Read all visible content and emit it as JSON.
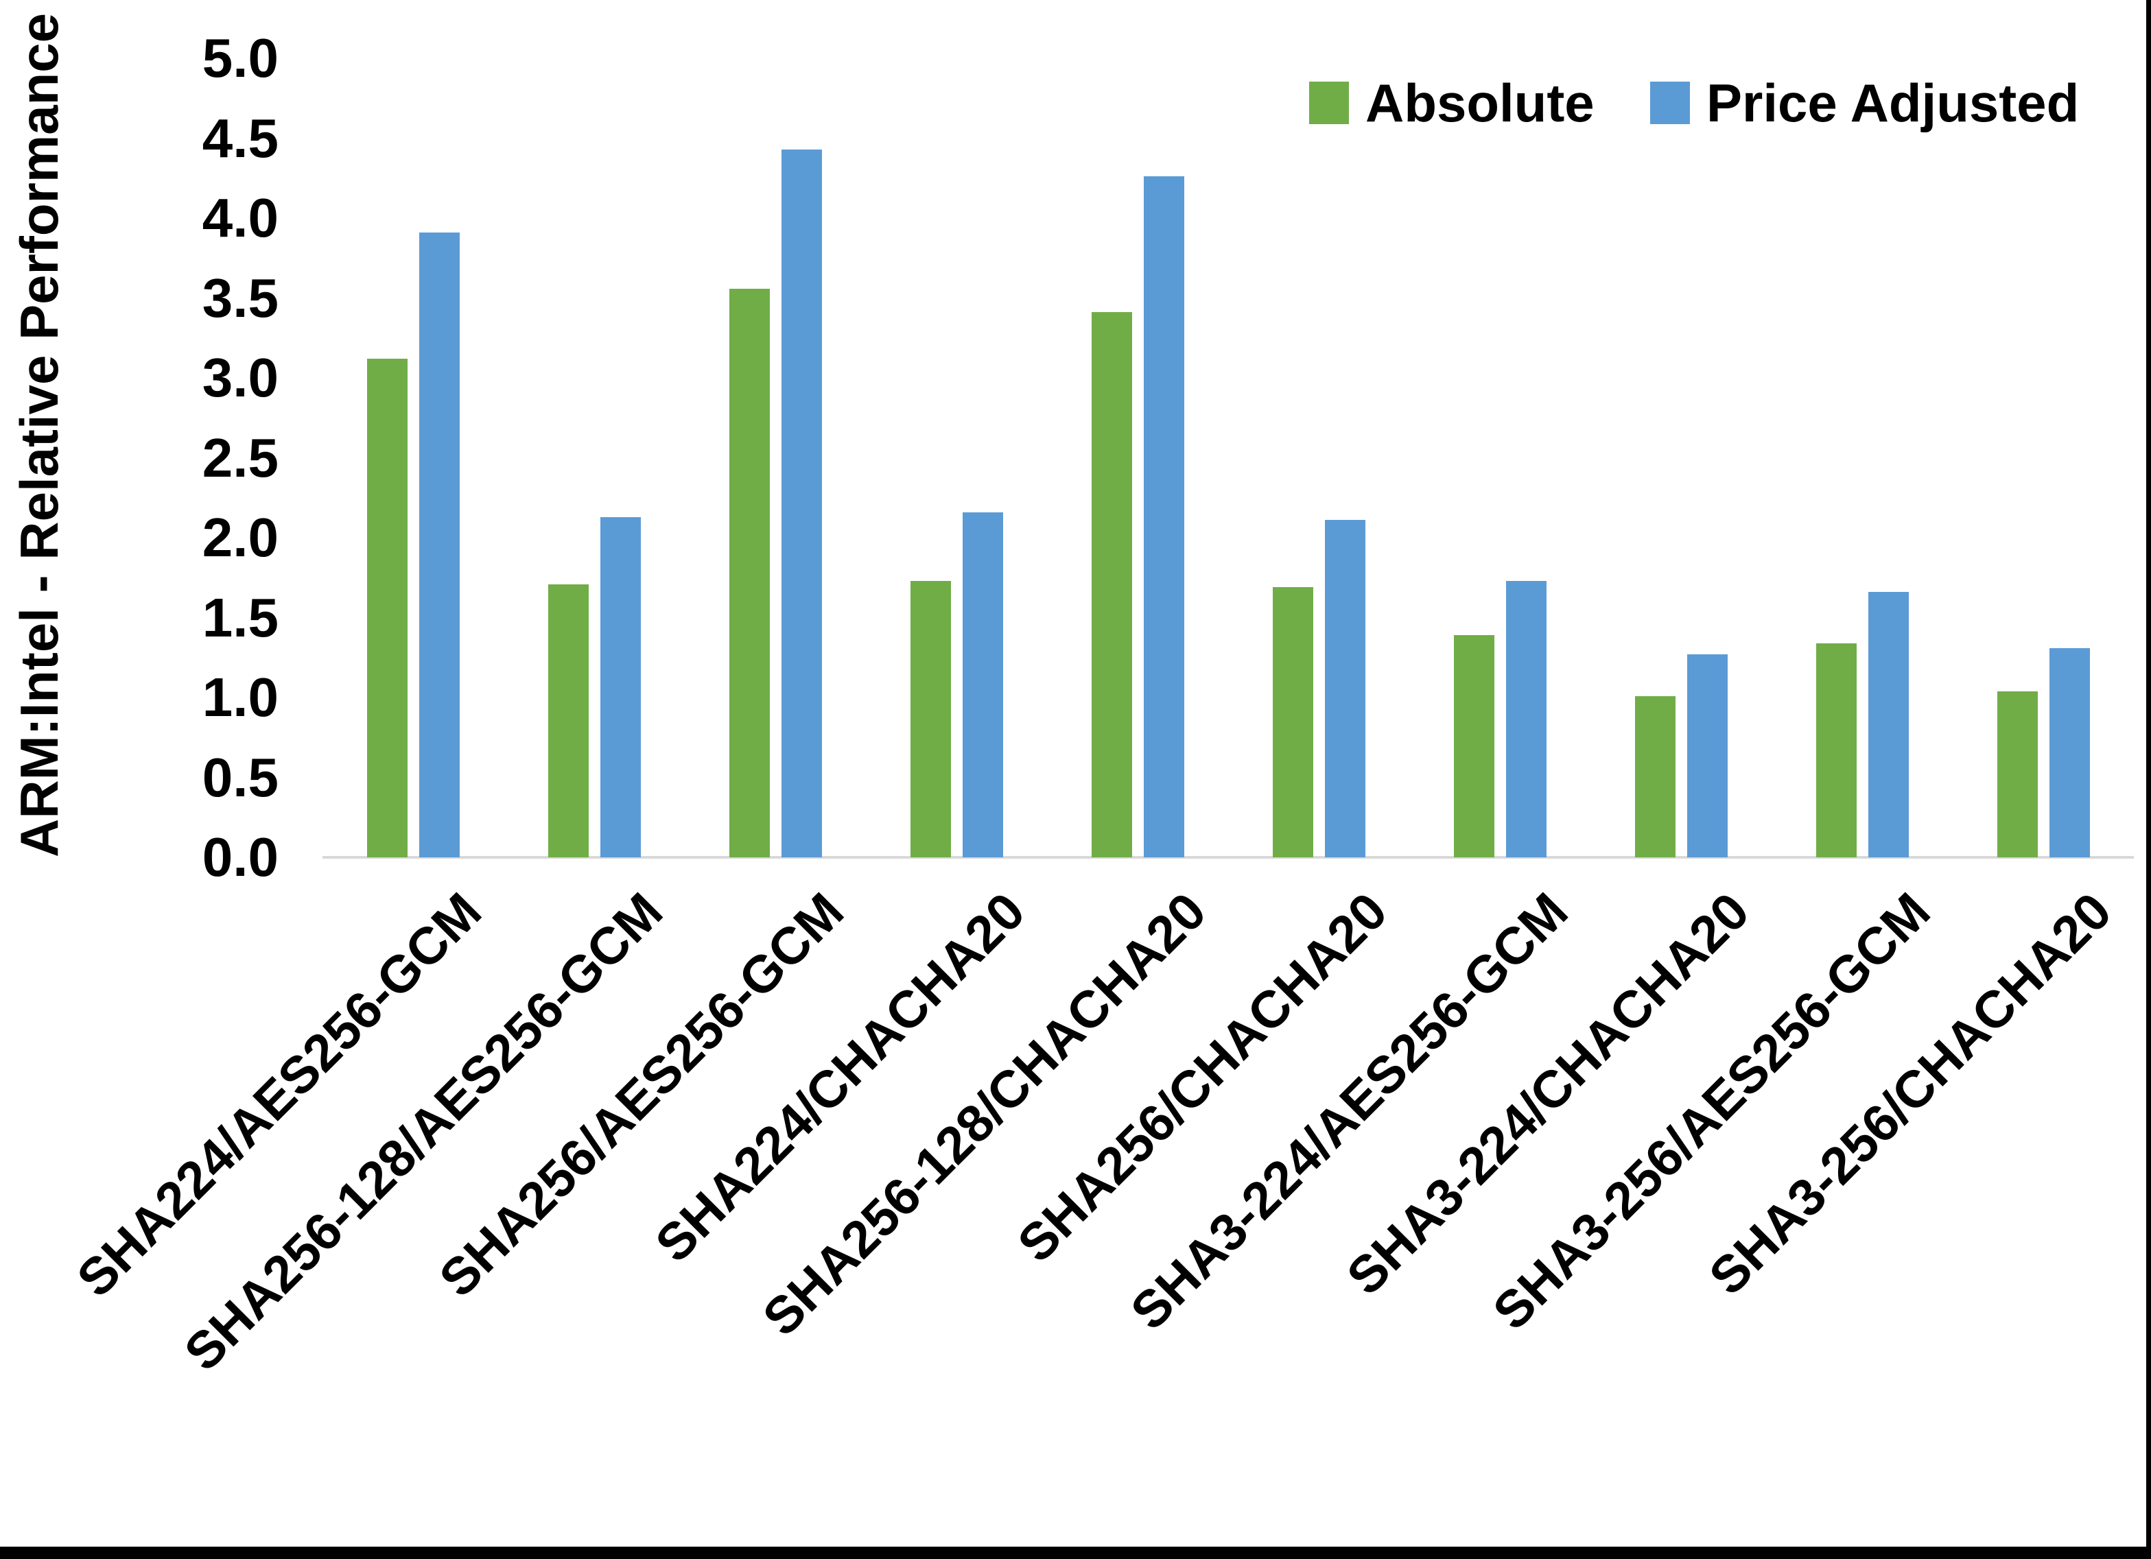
{
  "chart_data": {
    "type": "bar",
    "title": "",
    "xlabel": "",
    "ylabel": "ARM:Intel - Relative Performance",
    "ylim": [
      0,
      5
    ],
    "yticks": [
      "0.0",
      "0.5",
      "1.0",
      "1.5",
      "2.0",
      "2.5",
      "3.0",
      "3.5",
      "4.0",
      "4.5",
      "5.0"
    ],
    "grid": "baseline-only",
    "legend_position": "top-right",
    "categories": [
      "SHA224/AES256-GCM",
      "SHA256-128/AES256-GCM",
      "SHA256/AES256-GCM",
      "SHA224/CHACHA20",
      "SHA256-128/CHACHA20",
      "SHA256/CHACHA20",
      "SHA3-224/AES256-GCM",
      "SHA3-224/CHACHA20",
      "SHA3-256/AES256-GCM",
      "SHA3-256/CHACHA20"
    ],
    "series": [
      {
        "name": "Absolute",
        "color": "#70AD47",
        "values": [
          3.12,
          1.71,
          3.56,
          1.73,
          3.41,
          1.69,
          1.39,
          1.01,
          1.34,
          1.04
        ]
      },
      {
        "name": "Price Adjusted",
        "color": "#5B9BD5",
        "values": [
          3.91,
          2.13,
          4.43,
          2.16,
          4.26,
          2.11,
          1.73,
          1.27,
          1.66,
          1.31
        ]
      }
    ]
  },
  "colors": {
    "background": "#FFFFFF",
    "axis_line": "#D9D9D9",
    "text": "#000000",
    "border": "#000000"
  }
}
